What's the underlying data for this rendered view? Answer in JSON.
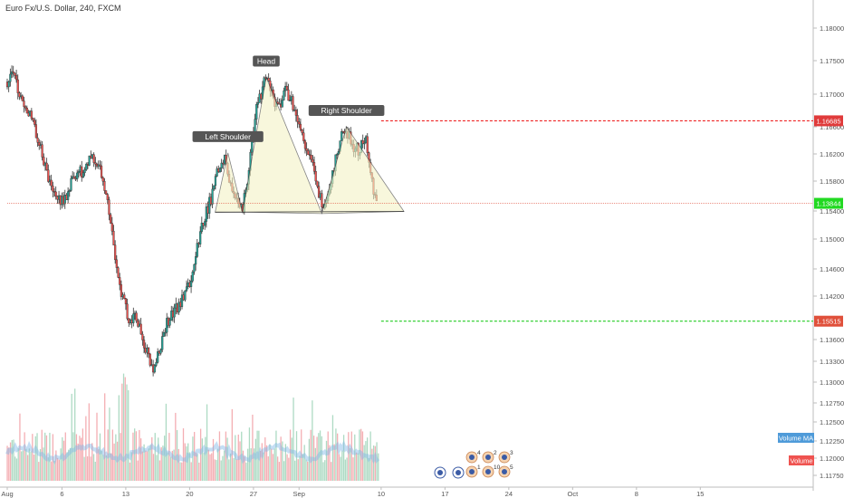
{
  "header": {
    "title": "Euro Fx/U.S. Dollar, 240, FXCM"
  },
  "chart_data": {
    "type": "candlestick",
    "title": "Euro Fx/U.S. Dollar, 240, FXCM",
    "x_ticks": [
      {
        "label": "Aug",
        "day": 0
      },
      {
        "label": "6",
        "day": 6
      },
      {
        "label": "13",
        "day": 13
      },
      {
        "label": "20",
        "day": 20
      },
      {
        "label": "27",
        "day": 27
      },
      {
        "label": "Sep",
        "day": 32
      },
      {
        "label": "10",
        "day": 41
      },
      {
        "label": "17",
        "day": 48
      },
      {
        "label": "24",
        "day": 55
      },
      {
        "label": "Oct",
        "day": 62
      },
      {
        "label": "8",
        "day": 69
      },
      {
        "label": "15",
        "day": 76
      }
    ],
    "y_ticks": [
      "1.18000",
      "1.17500",
      "1.17000",
      "1.16600",
      "1.16200",
      "1.15800",
      "1.15400",
      "1.15000",
      "1.14600",
      "1.14200",
      "1.13600",
      "1.13300",
      "1.13000",
      "1.12750",
      "1.12500",
      "1.12250",
      "1.12000",
      "1.11750"
    ],
    "y_tick_values": [
      1.18,
      1.175,
      1.17,
      1.166,
      1.162,
      1.158,
      1.154,
      1.15,
      1.146,
      1.142,
      1.136,
      1.133,
      1.13,
      1.1275,
      1.125,
      1.1225,
      1.12,
      1.1175
    ],
    "price_labels": [
      {
        "value": "1.16685",
        "color": "#e03b3b"
      },
      {
        "value": "1.15515",
        "color": "#e0503b"
      },
      {
        "value": "1.13844",
        "color": "#22d922"
      }
    ],
    "level_lines": [
      {
        "price": 1.16685,
        "color": "#ee2222",
        "start_day": 41
      },
      {
        "price": 1.13844,
        "color": "#22cc22",
        "start_day": 41
      },
      {
        "price": 1.15515,
        "color": "#e0503b",
        "start_day": 0
      }
    ],
    "pattern": {
      "labels": [
        "Left Shoulder",
        "Head",
        "Right Shoulder"
      ],
      "points": [
        {
          "day": 22.8,
          "price": 1.1539
        },
        {
          "day": 24.2,
          "price": 1.1623
        },
        {
          "day": 25.8,
          "price": 1.1539
        },
        {
          "day": 28.4,
          "price": 1.173
        },
        {
          "day": 34.5,
          "price": 1.1537
        },
        {
          "day": 37.2,
          "price": 1.166
        },
        {
          "day": 43.5,
          "price": 1.154
        }
      ],
      "fill": "#f4f3c6"
    },
    "price_path": [
      [
        -0.1,
        1.172
      ],
      [
        0.6,
        1.1745
      ],
      [
        1.3,
        1.1705
      ],
      [
        2.0,
        1.169
      ],
      [
        2.8,
        1.1665
      ],
      [
        3.5,
        1.164
      ],
      [
        4.2,
        1.16
      ],
      [
        4.9,
        1.157
      ],
      [
        5.6,
        1.156
      ],
      [
        6.3,
        1.1555
      ],
      [
        7.0,
        1.158
      ],
      [
        7.7,
        1.16
      ],
      [
        8.4,
        1.159
      ],
      [
        9.1,
        1.1615
      ],
      [
        9.8,
        1.1605
      ],
      [
        10.5,
        1.159
      ],
      [
        11.2,
        1.154
      ],
      [
        11.9,
        1.147
      ],
      [
        12.6,
        1.142
      ],
      [
        13.3,
        1.1385
      ],
      [
        14.0,
        1.1395
      ],
      [
        14.7,
        1.137
      ],
      [
        15.4,
        1.1335
      ],
      [
        16.1,
        1.131
      ],
      [
        16.8,
        1.135
      ],
      [
        17.5,
        1.138
      ],
      [
        18.2,
        1.1395
      ],
      [
        18.9,
        1.141
      ],
      [
        19.6,
        1.1425
      ],
      [
        20.3,
        1.145
      ],
      [
        21.0,
        1.15
      ],
      [
        21.7,
        1.1535
      ],
      [
        22.4,
        1.156
      ],
      [
        23.1,
        1.16
      ],
      [
        23.8,
        1.162
      ],
      [
        24.5,
        1.1575
      ],
      [
        25.2,
        1.156
      ],
      [
        25.8,
        1.1545
      ],
      [
        26.5,
        1.16
      ],
      [
        27.2,
        1.168
      ],
      [
        27.9,
        1.171
      ],
      [
        28.4,
        1.173
      ],
      [
        29.1,
        1.17
      ],
      [
        29.8,
        1.1685
      ],
      [
        30.5,
        1.1715
      ],
      [
        31.2,
        1.1695
      ],
      [
        31.9,
        1.167
      ],
      [
        32.6,
        1.164
      ],
      [
        33.3,
        1.161
      ],
      [
        34.0,
        1.158
      ],
      [
        34.5,
        1.1545
      ],
      [
        35.2,
        1.157
      ],
      [
        35.9,
        1.161
      ],
      [
        36.6,
        1.1645
      ],
      [
        37.2,
        1.1655
      ],
      [
        37.9,
        1.1635
      ],
      [
        38.6,
        1.1625
      ],
      [
        39.3,
        1.1645
      ],
      [
        40.0,
        1.158
      ],
      [
        40.6,
        1.1552
      ]
    ],
    "volume_label": "Volume",
    "volume_ma_label": "Volume MA",
    "event_markers": [
      {
        "day": 38.0,
        "count": "4"
      },
      {
        "day": 39.5,
        "count": "2"
      },
      {
        "day": 40.8,
        "count": "3"
      },
      {
        "day": 39.3,
        "count": "1"
      },
      {
        "day": 40.2,
        "count": "10"
      },
      {
        "day": 41.2,
        "count": "5"
      }
    ]
  }
}
